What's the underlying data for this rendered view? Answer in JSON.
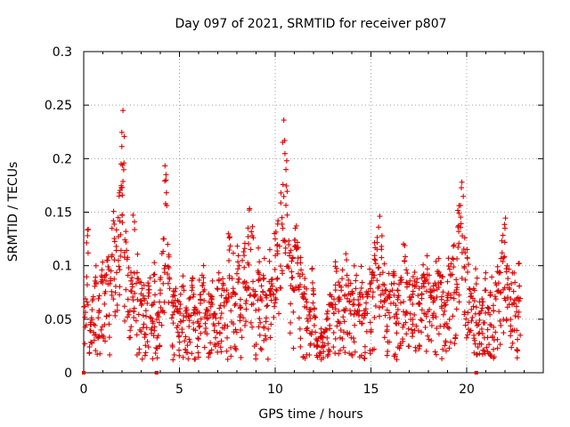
{
  "chart_data": {
    "type": "scatter",
    "title": "Day 097 of 2021, SRMTID for receiver p807",
    "xlabel": "GPS time / hours",
    "ylabel": "SRMTID / TECUs",
    "xlim": [
      0,
      24
    ],
    "ylim": [
      0,
      0.3
    ],
    "x_ticks": [
      0,
      5,
      10,
      15,
      20
    ],
    "x_tick_labels": [
      "0",
      "5",
      "10",
      "15",
      "20"
    ],
    "y_ticks": [
      0,
      0.05,
      0.1,
      0.15,
      0.2,
      0.25,
      0.3
    ],
    "y_tick_labels": [
      "0",
      "0.05",
      "0.1",
      "0.15",
      "0.2",
      "0.25",
      "0.3"
    ],
    "grid": true,
    "marker": "plus",
    "color": "#e00000",
    "baseline_markers_x": [
      0.0,
      3.8,
      20.5
    ],
    "series": [
      {
        "name": "SRMTID",
        "segments": [
          {
            "x": [
              0.05,
              0.2,
              0.35,
              0.5,
              0.65,
              0.8,
              0.95,
              1.1,
              1.25,
              1.4,
              1.55,
              1.7,
              1.85,
              1.95,
              2.05,
              2.2,
              2.35,
              2.5,
              2.65,
              2.8,
              2.95,
              3.1,
              3.25,
              3.4,
              3.55,
              3.7,
              3.85,
              4.0,
              4.15,
              4.3,
              4.45,
              4.6,
              4.75,
              4.9,
              5.05,
              5.2,
              5.35,
              5.5,
              5.65,
              5.8,
              5.95,
              6.1,
              6.25,
              6.4,
              6.55,
              6.7,
              6.85,
              7.0,
              7.15,
              7.3,
              7.45,
              7.6,
              7.75,
              7.9,
              8.05,
              8.2,
              8.35,
              8.5,
              8.65,
              8.8,
              8.95,
              9.1,
              9.25,
              9.4,
              9.55,
              9.7,
              9.85,
              10.0,
              10.15,
              10.3,
              10.45,
              10.6,
              10.75,
              10.9,
              11.05,
              11.2,
              11.35,
              11.5,
              11.65,
              11.8,
              11.95,
              12.1,
              12.25,
              12.4,
              12.55,
              12.7,
              12.85,
              13.0,
              13.15,
              13.3,
              13.45,
              13.6,
              13.75,
              13.9,
              14.05,
              14.2,
              14.35,
              14.5,
              14.65,
              14.8,
              14.95,
              15.1,
              15.25,
              15.4,
              15.55,
              15.7,
              15.85,
              16.0,
              16.15,
              16.3,
              16.45,
              16.6,
              16.75,
              16.9,
              17.05,
              17.2,
              17.35,
              17.5,
              17.65,
              17.8,
              17.95,
              18.1,
              18.25,
              18.4,
              18.55,
              18.7,
              18.85,
              19.0,
              19.15,
              19.3,
              19.45,
              19.6,
              19.75,
              19.9,
              20.05,
              20.2,
              20.35,
              20.5,
              20.65,
              20.8,
              20.95,
              21.1,
              21.25,
              21.4,
              21.55,
              21.7,
              21.85,
              22.0,
              22.15,
              22.3,
              22.45,
              22.6,
              22.75
            ],
            "y": [
              0.062,
              0.128,
              0.045,
              0.071,
              0.083,
              0.058,
              0.096,
              0.074,
              0.105,
              0.088,
              0.142,
              0.118,
              0.165,
              0.195,
              0.245,
              0.132,
              0.098,
              0.076,
              0.141,
              0.088,
              0.067,
              0.072,
              0.058,
              0.081,
              0.063,
              0.092,
              0.055,
              0.074,
              0.125,
              0.185,
              0.098,
              0.066,
              0.072,
              0.058,
              0.064,
              0.081,
              0.052,
              0.069,
              0.077,
              0.061,
              0.048,
              0.073,
              0.084,
              0.059,
              0.066,
              0.071,
              0.054,
              0.078,
              0.063,
              0.082,
              0.069,
              0.126,
              0.088,
              0.074,
              0.097,
              0.061,
              0.113,
              0.084,
              0.152,
              0.128,
              0.076,
              0.095,
              0.069,
              0.088,
              0.072,
              0.104,
              0.081,
              0.125,
              0.142,
              0.168,
              0.236,
              0.198,
              0.112,
              0.089,
              0.135,
              0.117,
              0.096,
              0.074,
              0.066,
              0.059,
              0.084,
              0.052,
              0.032,
              0.041,
              0.038,
              0.055,
              0.073,
              0.061,
              0.082,
              0.069,
              0.077,
              0.058,
              0.091,
              0.067,
              0.074,
              0.086,
              0.063,
              0.079,
              0.058,
              0.071,
              0.083,
              0.094,
              0.102,
              0.136,
              0.118,
              0.082,
              0.069,
              0.076,
              0.091,
              0.063,
              0.072,
              0.087,
              0.104,
              0.093,
              0.068,
              0.076,
              0.081,
              0.064,
              0.073,
              0.089,
              0.097,
              0.078,
              0.066,
              0.082,
              0.094,
              0.071,
              0.063,
              0.085,
              0.092,
              0.106,
              0.087,
              0.149,
              0.178,
              0.126,
              0.094,
              0.071,
              0.062,
              0.083,
              0.055,
              0.069,
              0.077,
              0.061,
              0.073,
              0.058,
              0.082,
              0.094,
              0.112,
              0.135,
              0.088,
              0.069,
              0.076,
              0.062,
              0.081
            ]
          }
        ]
      }
    ]
  }
}
